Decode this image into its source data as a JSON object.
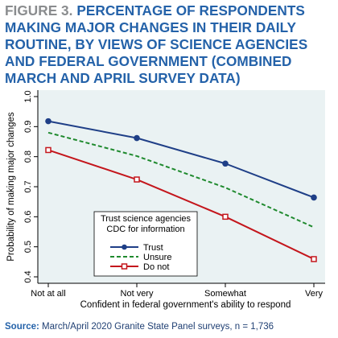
{
  "figure": {
    "label": "FIGURE 3.",
    "title": "PERCENTAGE OF RESPONDENTS MAKING MAJOR CHANGES IN THEIR DAILY ROUTINE, BY VIEWS OF SCIENCE AGENCIES AND FEDERAL GOVERNMENT (COMBINED MARCH AND APRIL SURVEY DATA)"
  },
  "source": {
    "label": "Source:",
    "text": "March/April 2020 Granite State Panel surveys, n = 1,736"
  },
  "colors": {
    "trust": "#1f3f87",
    "unsure": "#1f8a2e",
    "do_not": "#c4161c",
    "plot_background": "#eaf2f3",
    "title": "#2462a9"
  },
  "chart_data": {
    "type": "line",
    "xlabel": "Confident in federal government's ability to respond",
    "ylabel": "Probability of making major changes",
    "categories": [
      "Not at all",
      "Not very",
      "Somewhat",
      "Very"
    ],
    "ylim": [
      0.4,
      1.0
    ],
    "yticks": [
      "0.4",
      "0.5",
      "0.6",
      "0.7",
      "0.8",
      "0.9",
      "1.0"
    ],
    "grid": false,
    "legend": {
      "position": "bottom-left",
      "title_lines": [
        "Trust science agencies",
        "CDC for information"
      ]
    },
    "series": [
      {
        "name": "Trust",
        "values": [
          0.918,
          0.862,
          0.777,
          0.664
        ],
        "style": "solid",
        "marker": "circle"
      },
      {
        "name": "Unsure",
        "values": [
          0.88,
          0.802,
          0.697,
          0.565
        ],
        "style": "dashed",
        "marker": "none"
      },
      {
        "name": "Do not",
        "values": [
          0.822,
          0.724,
          0.6,
          0.459
        ],
        "style": "solid",
        "marker": "square"
      }
    ]
  }
}
